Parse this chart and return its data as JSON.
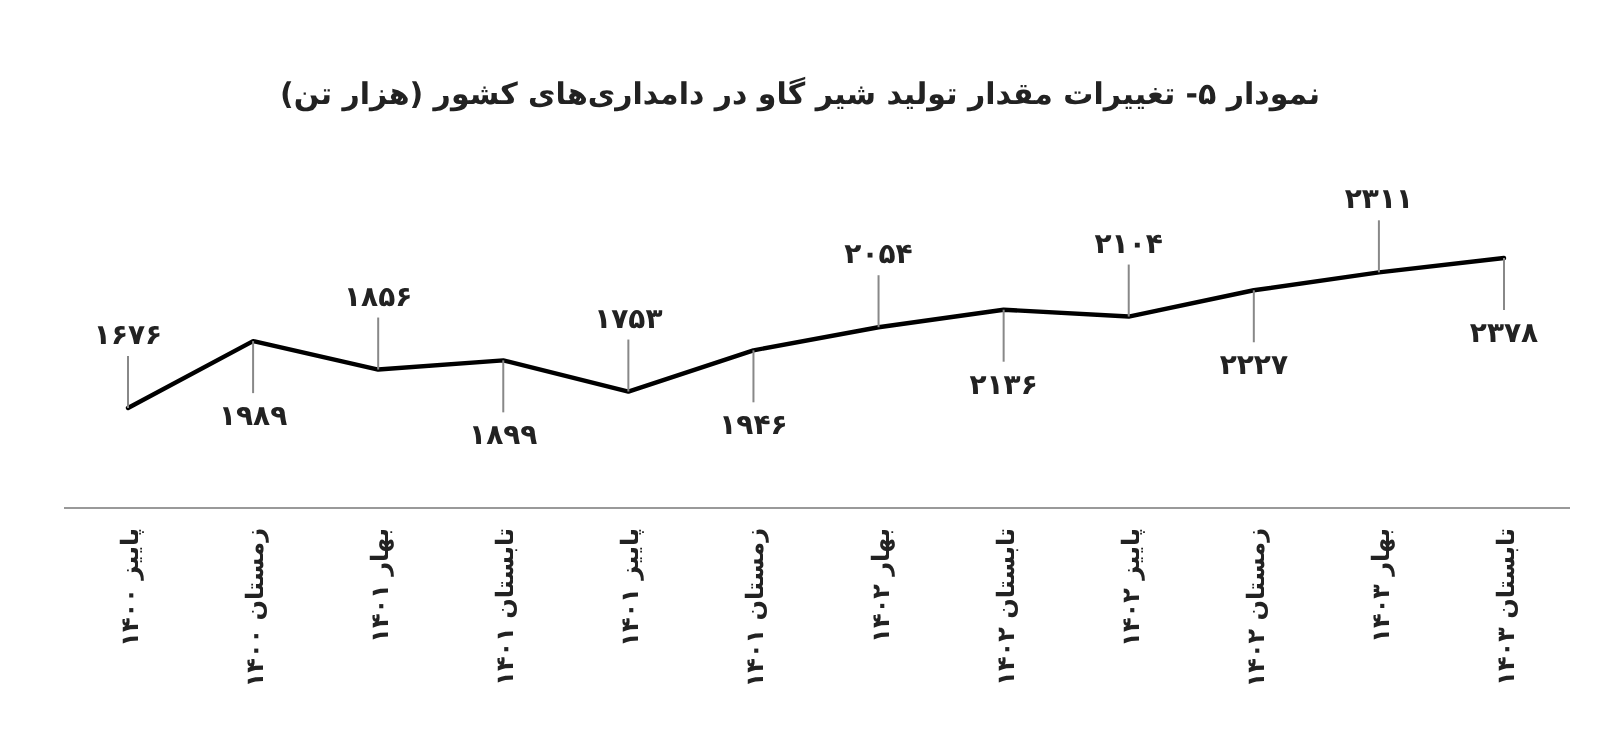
{
  "chart_data": {
    "type": "line",
    "title": "نمودار ۵- تغییرات مقدار تولید شیر گاو در دامداری‌های کشور (هزار تن)",
    "categories": [
      "پاییز ۱۴۰۰",
      "زمستان ۱۴۰۰",
      "بهار ۱۴۰۱",
      "تابستان ۱۴۰۱",
      "پاییز ۱۴۰۱",
      "زمستان ۱۴۰۱",
      "بهار ۱۴۰۲",
      "تابستان ۱۴۰۲",
      "پاییز ۱۴۰۲",
      "زمستان ۱۴۰۲",
      "بهار ۱۴۰۳",
      "تابستان ۱۴۰۳"
    ],
    "values": [
      1676,
      1989,
      1856,
      1899,
      1753,
      1946,
      2054,
      2136,
      2104,
      2227,
      2311,
      2378
    ],
    "value_labels": [
      "۱۶۷۶",
      "۱۹۸۹",
      "۱۸۵۶",
      "۱۸۹۹",
      "۱۷۵۳",
      "۱۹۴۶",
      "۲۰۵۴",
      "۲۱۳۶",
      "۲۱۰۴",
      "۲۲۲۷",
      "۲۳۱۱",
      "۲۳۷۸"
    ],
    "color": "#000000",
    "line_style": "solid",
    "marker": "none",
    "relative": false
  }
}
